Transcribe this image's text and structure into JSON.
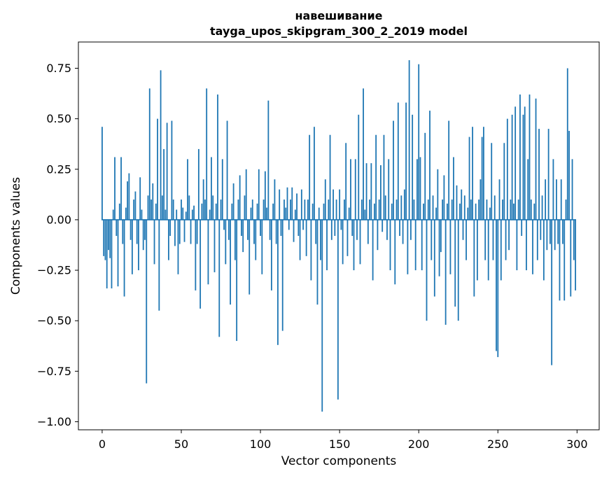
{
  "figure": {
    "bar_color": "#1f77b4",
    "background": "#ffffff",
    "axis_color": "#000000"
  },
  "chart_data": {
    "type": "bar",
    "title_line1": "навешивание",
    "title_line2": "tayga_upos_skipgram_300_2_2019 model",
    "xlabel": "Vector components",
    "ylabel": "Components values",
    "xlim": [
      -15,
      314
    ],
    "ylim": [
      -1.04,
      0.88
    ],
    "grid": false,
    "legend": null,
    "x_ticks": [
      0,
      50,
      100,
      150,
      200,
      250,
      300
    ],
    "x_tick_labels": [
      "0",
      "50",
      "100",
      "150",
      "200",
      "250",
      "300"
    ],
    "y_ticks": [
      0.75,
      0.5,
      0.25,
      0,
      -0.25,
      -0.5,
      -0.75,
      -1
    ],
    "y_tick_labels": [
      "0.75",
      "0.50",
      "0.25",
      "0.00",
      "−0.25",
      "−0.50",
      "−0.75",
      "−1.00"
    ],
    "values": [
      0.46,
      -0.18,
      -0.2,
      -0.34,
      -0.15,
      -0.19,
      -0.34,
      0.05,
      0.31,
      -0.08,
      -0.33,
      0.08,
      0.31,
      -0.12,
      -0.38,
      0.06,
      0.19,
      0.23,
      -0.1,
      -0.27,
      0.1,
      0.14,
      -0.12,
      -0.25,
      0.21,
      0.05,
      -0.15,
      -0.1,
      -0.81,
      0.12,
      0.65,
      0.1,
      0.18,
      -0.22,
      0.08,
      0.5,
      -0.45,
      0.74,
      0.12,
      0.35,
      0.05,
      0.48,
      -0.2,
      -0.08,
      0.49,
      0.1,
      -0.13,
      0.05,
      -0.27,
      -0.12,
      0.1,
      0.06,
      -0.11,
      0.04,
      0.3,
      0.12,
      -0.12,
      0.05,
      0.07,
      -0.35,
      -0.12,
      0.35,
      -0.44,
      0.08,
      0.2,
      0.1,
      0.65,
      -0.32,
      0.05,
      0.31,
      0.12,
      -0.26,
      0.08,
      0.62,
      -0.58,
      0.1,
      0.3,
      -0.05,
      -0.22,
      0.49,
      -0.1,
      -0.42,
      0.08,
      0.18,
      -0.2,
      -0.6,
      0.1,
      0.22,
      -0.08,
      -0.16,
      0.12,
      0.25,
      -0.1,
      -0.37,
      0.06,
      0.1,
      -0.12,
      -0.2,
      0.08,
      0.25,
      -0.08,
      -0.27,
      0.1,
      0.24,
      0.06,
      0.59,
      -0.1,
      -0.35,
      0.08,
      0.2,
      -0.12,
      -0.62,
      0.15,
      -0.08,
      -0.55,
      0.1,
      0.06,
      0.16,
      -0.05,
      0.1,
      0.16,
      -0.11,
      0.05,
      0.13,
      -0.08,
      -0.2,
      0.15,
      -0.05,
      0.1,
      -0.18,
      0.1,
      0.42,
      -0.3,
      0.08,
      0.46,
      -0.12,
      -0.42,
      0.06,
      -0.2,
      -0.95,
      0.08,
      0.2,
      -0.25,
      0.1,
      0.42,
      -0.1,
      0.15,
      -0.08,
      0.1,
      -0.89,
      0.15,
      -0.05,
      -0.22,
      0.1,
      0.38,
      -0.18,
      0.06,
      0.3,
      -0.08,
      -0.25,
      0.3,
      -0.1,
      0.52,
      -0.22,
      0.1,
      0.65,
      0.05,
      0.28,
      -0.12,
      0.1,
      0.28,
      -0.3,
      0.08,
      0.42,
      -0.15,
      0.1,
      0.27,
      -0.06,
      0.42,
      0.12,
      -0.1,
      0.3,
      -0.25,
      0.08,
      0.49,
      -0.32,
      0.1,
      0.58,
      -0.08,
      0.12,
      -0.12,
      0.15,
      0.58,
      -0.27,
      0.79,
      -0.1,
      0.52,
      0.1,
      -0.25,
      0.3,
      0.77,
      0.31,
      -0.25,
      0.08,
      0.43,
      -0.5,
      0.1,
      0.54,
      -0.2,
      0.12,
      -0.38,
      0.06,
      0.25,
      -0.28,
      -0.16,
      0.1,
      0.22,
      -0.52,
      0.08,
      0.49,
      -0.27,
      0.1,
      0.31,
      -0.43,
      0.17,
      -0.5,
      0.08,
      0.15,
      -0.1,
      0.12,
      -0.2,
      0.06,
      0.41,
      0.1,
      0.46,
      -0.38,
      0.08,
      -0.3,
      0.1,
      0.2,
      0.41,
      0.46,
      -0.2,
      0.1,
      -0.3,
      0.06,
      0.38,
      -0.2,
      0.12,
      -0.65,
      -0.68,
      0.2,
      -0.3,
      0.1,
      0.38,
      -0.2,
      0.5,
      -0.15,
      0.1,
      0.52,
      0.08,
      0.56,
      -0.25,
      0.1,
      0.62,
      -0.08,
      0.52,
      0.56,
      -0.25,
      0.3,
      0.62,
      0.1,
      -0.27,
      0.08,
      0.6,
      -0.2,
      0.45,
      -0.1,
      0.12,
      -0.3,
      0.2,
      -0.15,
      0.45,
      -0.12,
      -0.72,
      0.3,
      -0.15,
      0.2,
      -0.12,
      -0.4,
      0.2,
      -0.12,
      -0.4,
      0.1,
      0.75,
      0.44,
      -0.38,
      0.3,
      -0.2,
      -0.35
    ]
  }
}
